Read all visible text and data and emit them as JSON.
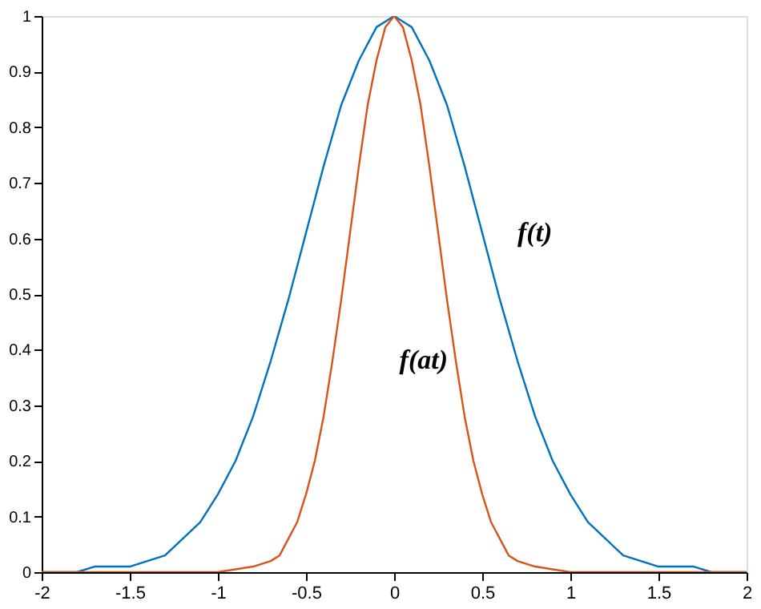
{
  "chart_data": {
    "type": "line",
    "xlim": [
      -2,
      2
    ],
    "ylim": [
      0,
      1
    ],
    "xticks": [
      -2,
      -1.5,
      -1,
      -0.5,
      0,
      0.5,
      1,
      1.5,
      2
    ],
    "yticks": [
      0,
      0.1,
      0.2,
      0.3,
      0.4,
      0.5,
      0.6,
      0.7,
      0.8,
      0.9,
      1
    ],
    "grid": false,
    "marker": "none",
    "line_style": "solid",
    "series": [
      {
        "name": "f(t)",
        "color": "#0072bd",
        "x": [
          -2,
          -1.9,
          -1.8,
          -1.7,
          -1.6,
          -1.5,
          -1.4,
          -1.3,
          -1.2,
          -1.1,
          -1,
          -0.9,
          -0.8,
          -0.7,
          -0.6,
          -0.5,
          -0.4,
          -0.3,
          -0.2,
          -0.1,
          0,
          0.1,
          0.2,
          0.3,
          0.4,
          0.5,
          0.6,
          0.7,
          0.8,
          0.9,
          1,
          1.1,
          1.2,
          1.3,
          1.4,
          1.5,
          1.6,
          1.7,
          1.8,
          1.9,
          2
        ],
        "values": [
          0,
          0,
          0,
          0.01,
          0.01,
          0.01,
          0.02,
          0.03,
          0.06,
          0.09,
          0.14,
          0.2,
          0.28,
          0.38,
          0.49,
          0.61,
          0.73,
          0.84,
          0.92,
          0.98,
          1,
          0.98,
          0.92,
          0.84,
          0.73,
          0.61,
          0.49,
          0.38,
          0.28,
          0.2,
          0.14,
          0.09,
          0.06,
          0.03,
          0.02,
          0.01,
          0.01,
          0.01,
          0,
          0,
          0
        ]
      },
      {
        "name": "f(at)",
        "color": "#d95319",
        "x": [
          -2,
          -1,
          -0.8,
          -0.7,
          -0.65,
          -0.6,
          -0.55,
          -0.5,
          -0.45,
          -0.4,
          -0.35,
          -0.3,
          -0.25,
          -0.2,
          -0.15,
          -0.1,
          -0.05,
          0,
          0.05,
          0.1,
          0.15,
          0.2,
          0.25,
          0.3,
          0.35,
          0.4,
          0.45,
          0.5,
          0.55,
          0.6,
          0.65,
          0.7,
          0.8,
          1,
          2
        ],
        "values": [
          0,
          0,
          0.01,
          0.02,
          0.03,
          0.06,
          0.09,
          0.14,
          0.2,
          0.28,
          0.38,
          0.49,
          0.61,
          0.73,
          0.84,
          0.92,
          0.98,
          1,
          0.98,
          0.92,
          0.84,
          0.73,
          0.61,
          0.49,
          0.38,
          0.28,
          0.2,
          0.14,
          0.09,
          0.06,
          0.03,
          0.02,
          0.01,
          0,
          0
        ]
      }
    ]
  }
}
